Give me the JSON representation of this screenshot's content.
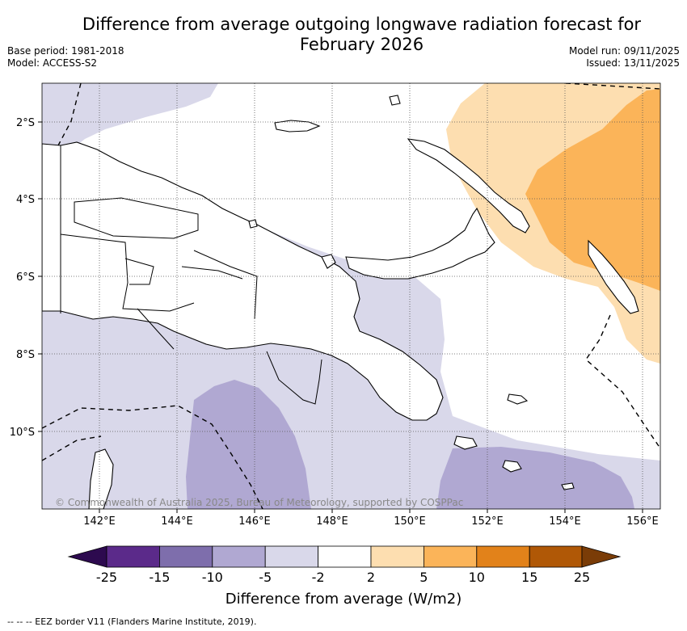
{
  "title": "Difference from average outgoing longwave radiation forecast for February 2026",
  "title_line1": "Difference from average outgoing longwave radiation forecast for",
  "title_line2": "February 2026",
  "info_left": {
    "base_period": "Base period: 1981-2018",
    "model": "Model: ACCESS-S2"
  },
  "info_right": {
    "model_run": "Model run: 09/11/2025",
    "issued": "Issued: 13/11/2025"
  },
  "map": {
    "lon_labels": [
      "142°E",
      "144°E",
      "146°E",
      "148°E",
      "150°E",
      "152°E",
      "154°E",
      "156°E"
    ],
    "lat_labels": [
      "2°S",
      "4°S",
      "6°S",
      "8°S",
      "10°S"
    ],
    "copyright": "© Commonwealth of Australia 2025, Bureau of Meteorology, supported by COSPPac"
  },
  "colorbar": {
    "title": "Difference from average (W/m2)",
    "labels": [
      "-25",
      "-15",
      "-10",
      "-5",
      "-2",
      "2",
      "5",
      "10",
      "15",
      "25"
    ],
    "colors": [
      "#5b2a8a",
      "#7e6eac",
      "#b0a8d2",
      "#d9d8ea",
      "#ffffff",
      "#fddeb0",
      "#fbb459",
      "#e2821a",
      "#b05806"
    ],
    "under_color": "#2d0a4f",
    "over_color": "#7a3c07"
  },
  "legend_note": "--  --  -- EEZ border V11 (Flanders Marine Institute, 2019).",
  "colors": {
    "lav_light": "#d9d8ea",
    "lav_mid": "#b0a8d2",
    "orange_light": "#fddeb0",
    "orange_mid": "#fbb459"
  }
}
